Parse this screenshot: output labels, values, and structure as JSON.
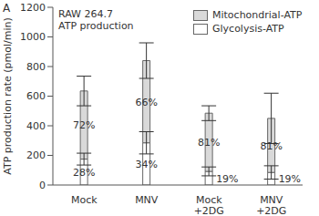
{
  "chart_data": {
    "type": "bar",
    "stacked": true,
    "panel_label": "A",
    "title": "RAW 264.7",
    "subtitle": "ATP production",
    "y_label": "ATP production rate (pmol/min)",
    "categories": [
      "Mock",
      "MNV",
      "Mock +2DG",
      "MNV +2DG"
    ],
    "ylim": [
      0,
      1200
    ],
    "yticks": [
      0,
      200,
      400,
      600,
      800,
      1000,
      1200
    ],
    "legend": "upper right",
    "series": [
      {
        "name": "Glycolysis-ATP",
        "color": "#ffffff",
        "values": [
          175,
          285,
          92,
          85
        ],
        "errors": [
          40,
          75,
          30,
          45
        ],
        "percent_labels": [
          "28%",
          "34%",
          "19%",
          "19%"
        ]
      },
      {
        "name": "Mitochondrial-ATP",
        "color": "#d9d9d9",
        "values": [
          460,
          555,
          393,
          365
        ],
        "errors": [
          100,
          120,
          50,
          170
        ],
        "percent_labels": [
          "72%",
          "66%",
          "81%",
          "81%"
        ]
      }
    ]
  }
}
